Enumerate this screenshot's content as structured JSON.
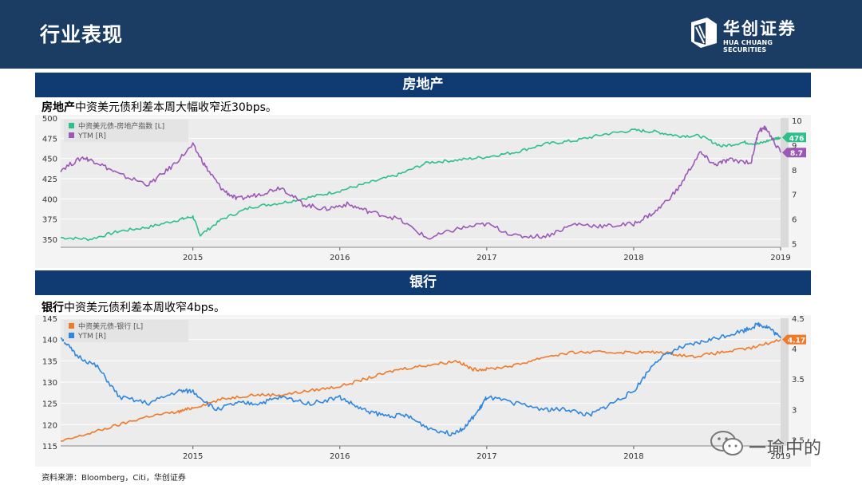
{
  "header": {
    "title": "行业表现",
    "logo_cn": "华创证券",
    "logo_en": "HUA CHUANG SECURITIES"
  },
  "sections": [
    {
      "bar_label": "房地产",
      "caption_bold": "房地产",
      "caption_rest": "中资美元债利差本周大幅收窄近30bps。"
    },
    {
      "bar_label": "银行",
      "caption_bold": "银行",
      "caption_rest": "中资美元债利差本周收窄4bps。"
    }
  ],
  "source": "资料来源：Bloomberg，Citi，华创证券",
  "watermark": "一瑜中的",
  "chart_data": [
    {
      "type": "line",
      "x_tick_labels": [
        "2015",
        "2016",
        "2017",
        "2018",
        "2019"
      ],
      "left_axis": {
        "ylim": [
          340,
          500
        ],
        "ticks": [
          350,
          375,
          400,
          425,
          450,
          475,
          500
        ]
      },
      "right_axis": {
        "ylim": [
          4.85,
          10.1
        ],
        "ticks": [
          5,
          6,
          7,
          8,
          9,
          10
        ]
      },
      "legend_position": "top-left",
      "end_labels": [
        "476",
        "8.7"
      ],
      "series": [
        {
          "name": "中资美元债-房地产指数 [L]",
          "axis": "left",
          "color": "#2ec08a",
          "x": [
            2014.1,
            2014.3,
            2014.5,
            2014.7,
            2014.9,
            2015.0,
            2015.05,
            2015.2,
            2015.4,
            2015.6,
            2015.8,
            2016.0,
            2016.2,
            2016.4,
            2016.6,
            2016.8,
            2017.0,
            2017.2,
            2017.4,
            2017.6,
            2017.8,
            2018.0,
            2018.15,
            2018.3,
            2018.45,
            2018.6,
            2018.75,
            2018.85,
            2018.95,
            2019.0
          ],
          "y": [
            352,
            350,
            360,
            365,
            374,
            378,
            355,
            375,
            390,
            395,
            402,
            410,
            420,
            430,
            445,
            448,
            452,
            458,
            468,
            472,
            480,
            485,
            483,
            478,
            478,
            465,
            470,
            468,
            474,
            476
          ]
        },
        {
          "name": "YTM [R]",
          "axis": "right",
          "color": "#9b59b6",
          "x": [
            2014.1,
            2014.25,
            2014.35,
            2014.5,
            2014.7,
            2014.85,
            2015.0,
            2015.1,
            2015.2,
            2015.3,
            2015.45,
            2015.6,
            2015.75,
            2015.9,
            2016.05,
            2016.2,
            2016.4,
            2016.6,
            2016.8,
            2017.0,
            2017.2,
            2017.4,
            2017.6,
            2017.8,
            2018.0,
            2018.15,
            2018.3,
            2018.45,
            2018.55,
            2018.65,
            2018.8,
            2018.85,
            2018.9,
            2019.0
          ],
          "y": [
            8.0,
            8.5,
            8.3,
            7.8,
            7.4,
            8.1,
            9.0,
            8.0,
            7.2,
            6.8,
            7.0,
            7.3,
            6.6,
            6.4,
            6.6,
            6.3,
            6.0,
            5.2,
            5.6,
            5.8,
            5.3,
            5.3,
            5.8,
            5.7,
            5.8,
            6.3,
            7.2,
            8.7,
            8.2,
            8.4,
            8.3,
            9.6,
            9.7,
            8.7
          ]
        }
      ]
    },
    {
      "type": "line",
      "x_tick_labels": [
        "2015",
        "2016",
        "2017",
        "2018",
        "2019"
      ],
      "left_axis": {
        "ylim": [
          115,
          145
        ],
        "ticks": [
          115,
          120,
          125,
          130,
          135,
          140,
          145
        ]
      },
      "right_axis": {
        "ylim": [
          2.4,
          4.5
        ],
        "ticks": [
          2.5,
          3,
          3.5,
          4,
          4.5
        ]
      },
      "legend_position": "top-left",
      "end_labels": [
        "4.17"
      ],
      "series": [
        {
          "name": "中资美元债-银行 [L]",
          "axis": "left",
          "color": "#f07a2a",
          "x": [
            2014.1,
            2014.3,
            2014.5,
            2014.7,
            2014.9,
            2015.0,
            2015.2,
            2015.4,
            2015.6,
            2015.8,
            2016.0,
            2016.2,
            2016.4,
            2016.6,
            2016.8,
            2016.9,
            2017.0,
            2017.2,
            2017.4,
            2017.6,
            2017.8,
            2018.0,
            2018.2,
            2018.4,
            2018.6,
            2018.8,
            2019.0
          ],
          "y": [
            116,
            118,
            120,
            122,
            123,
            124,
            126,
            127,
            127,
            128,
            129,
            131,
            133,
            134,
            135,
            133,
            133,
            134,
            136,
            137,
            137,
            137,
            137,
            136,
            137,
            138,
            140
          ]
        },
        {
          "name": "YTM [R]",
          "axis": "right",
          "color": "#2e86de",
          "x": [
            2014.1,
            2014.2,
            2014.35,
            2014.5,
            2014.7,
            2014.9,
            2015.0,
            2015.15,
            2015.3,
            2015.45,
            2015.6,
            2015.8,
            2016.0,
            2016.15,
            2016.3,
            2016.45,
            2016.6,
            2016.75,
            2016.85,
            2016.95,
            2017.0,
            2017.2,
            2017.4,
            2017.55,
            2017.7,
            2017.85,
            2018.0,
            2018.15,
            2018.3,
            2018.45,
            2018.6,
            2018.75,
            2018.85,
            2018.92,
            2019.0
          ],
          "y": [
            4.2,
            3.9,
            3.7,
            3.2,
            3.1,
            3.3,
            3.3,
            3.0,
            3.1,
            3.1,
            3.2,
            3.1,
            3.2,
            3.0,
            2.9,
            2.9,
            2.7,
            2.6,
            2.7,
            3.0,
            3.2,
            3.1,
            3.0,
            3.0,
            2.9,
            3.1,
            3.3,
            3.8,
            4.0,
            4.1,
            4.2,
            4.3,
            4.4,
            4.35,
            4.17
          ]
        }
      ]
    }
  ]
}
